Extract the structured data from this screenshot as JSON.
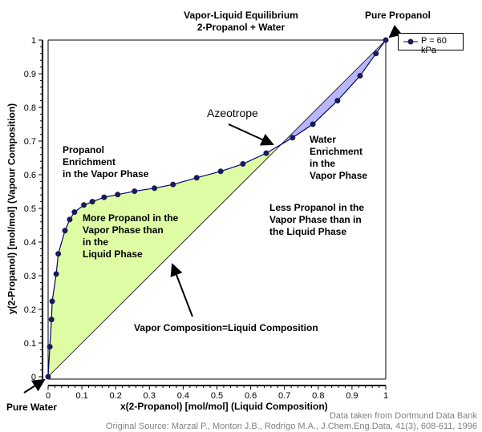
{
  "chart_data": {
    "type": "line",
    "title": "Vapor-Liquid Equilibrium",
    "subtitle": "2-Propanol + Water",
    "xlabel": "x(2-Propanol) [mol/mol] (Liquid Composition)",
    "ylabel": "y(2-Propanol) [mol/mol] (Vapour Composition)",
    "xlim": [
      0,
      1
    ],
    "ylim": [
      0,
      1
    ],
    "xticks": [
      "0",
      "0.1",
      "0.2",
      "0.3",
      "0.4",
      "0.5",
      "0.6",
      "0.7",
      "0.8",
      "0.9",
      "1"
    ],
    "yticks": [
      "0",
      "0.1",
      "0.2",
      "0.3",
      "0.4",
      "0.5",
      "0.6",
      "0.7",
      "0.8",
      "0.9",
      "1"
    ],
    "grid": false,
    "legend_position": "top-right",
    "series": [
      {
        "name": "P = 60 kPa",
        "color": "#000080",
        "marker_color": "#1a1a5a",
        "x": [
          0,
          0.005,
          0.01,
          0.012,
          0.024,
          0.03,
          0.05,
          0.064,
          0.078,
          0.106,
          0.131,
          0.166,
          0.206,
          0.256,
          0.315,
          0.37,
          0.44,
          0.511,
          0.577,
          0.646,
          0.724,
          0.784,
          0.857,
          0.924,
          0.971,
          1
        ],
        "y": [
          0,
          0.089,
          0.17,
          0.224,
          0.305,
          0.365,
          0.434,
          0.467,
          0.489,
          0.51,
          0.52,
          0.533,
          0.541,
          0.551,
          0.56,
          0.571,
          0.591,
          0.61,
          0.632,
          0.664,
          0.71,
          0.75,
          0.82,
          0.894,
          0.96,
          1
        ]
      }
    ],
    "azeotrope_x": 0.68,
    "fill_colors": {
      "above_diagonal": "#ddfca4",
      "below_diagonal": "#b8b8f8"
    },
    "annotations": {
      "pure_propanol": "Pure Propanol",
      "pure_water": "Pure Water",
      "azeotrope": "Azeotrope",
      "propanol_enrichment": "Propanol\nEnrichment\nin the Vapor Phase",
      "water_enrichment": "Water\nEnrichment\nin the\nVapor Phase",
      "more_propanol": "More Propanol in the\nVapor Phase than\nin the\nLiquid Phase",
      "less_propanol": "Less Propanol in the\nVapor Phase than in\nthe Liquid Phase",
      "diagonal": "Vapor Composition=Liquid Composition"
    },
    "source_notes": [
      "Data taken from Dortmund Data Bank",
      "Original Source: Marzal P., Monton J.B., Rodrigo M.A., J.Chem.Eng.Data, 41(3), 608-611, 1996"
    ]
  }
}
